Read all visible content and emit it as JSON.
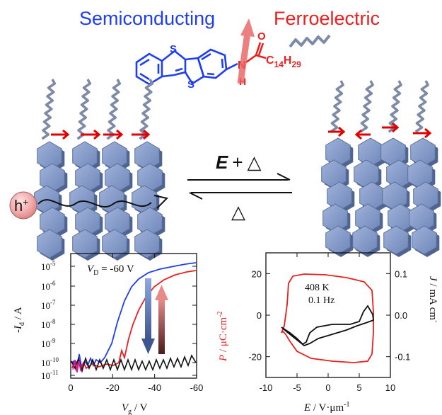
{
  "header": {
    "semiconducting": "Semiconducting",
    "ferroelectric": "Ferroelectric",
    "semi_color": "#1f3ef0",
    "ferro_color": "#e82020"
  },
  "molecule": {
    "sulfur": "S",
    "nitrogen": "N",
    "hydrogen": "H",
    "oxygen": "O",
    "chain_c": "C",
    "chain_c_sub": "14",
    "chain_h": "H",
    "chain_h_sub": "29"
  },
  "scheme": {
    "forward_E": "E",
    "forward_plus": "+",
    "heat_symbol": "△",
    "backward_heat": "△",
    "hole": "h",
    "hole_charge": "+"
  },
  "transfer_plot": {
    "vd_var": "V",
    "vd_sub": "D",
    "vd_value": " = -60 V",
    "ylabel_var": "-I",
    "ylabel_sub": "d",
    "ylabel_unit": " / A",
    "xlabel_var": "V",
    "xlabel_sub": "g",
    "xlabel_unit": " / V",
    "y_ticks": [
      {
        "base": "10",
        "exp": "-5"
      },
      {
        "base": "10",
        "exp": "-6"
      },
      {
        "base": "10",
        "exp": "-7"
      },
      {
        "base": "10",
        "exp": "-8"
      },
      {
        "base": "10",
        "exp": "-9"
      },
      {
        "base": "10",
        "exp": "-10"
      },
      {
        "base": "10",
        "exp": "-11"
      }
    ],
    "x_ticks": [
      "0",
      "-20",
      "-40",
      "-60"
    ]
  },
  "pe_plot": {
    "temperature": "408 K",
    "frequency": "0.1 Hz",
    "ylabel_left_var": "P",
    "ylabel_left_unit": " / μC·cm",
    "ylabel_left_exp": "-2",
    "ylabel_right_var": "J",
    "ylabel_right_unit": " / mA cm",
    "ylabel_right_exp": "-",
    "xlabel_var": "E",
    "xlabel_unit": " / V·μm",
    "xlabel_exp": "-1",
    "left_ticks": [
      "20",
      "0",
      "-20"
    ],
    "right_ticks": [
      "0.1",
      "0.0",
      "-0.1"
    ],
    "x_ticks": [
      "-10",
      "-5",
      "0",
      "5",
      "10"
    ],
    "p_color": "#e82020",
    "j_color": "#111111"
  },
  "colors": {
    "molecule_blue": "#1f3ef0",
    "molecule_red": "#e82020",
    "core_fill": "#7f97c6",
    "core_dark": "#566b94",
    "chain": "#7d8aa8",
    "dipole": "#e00000"
  }
}
